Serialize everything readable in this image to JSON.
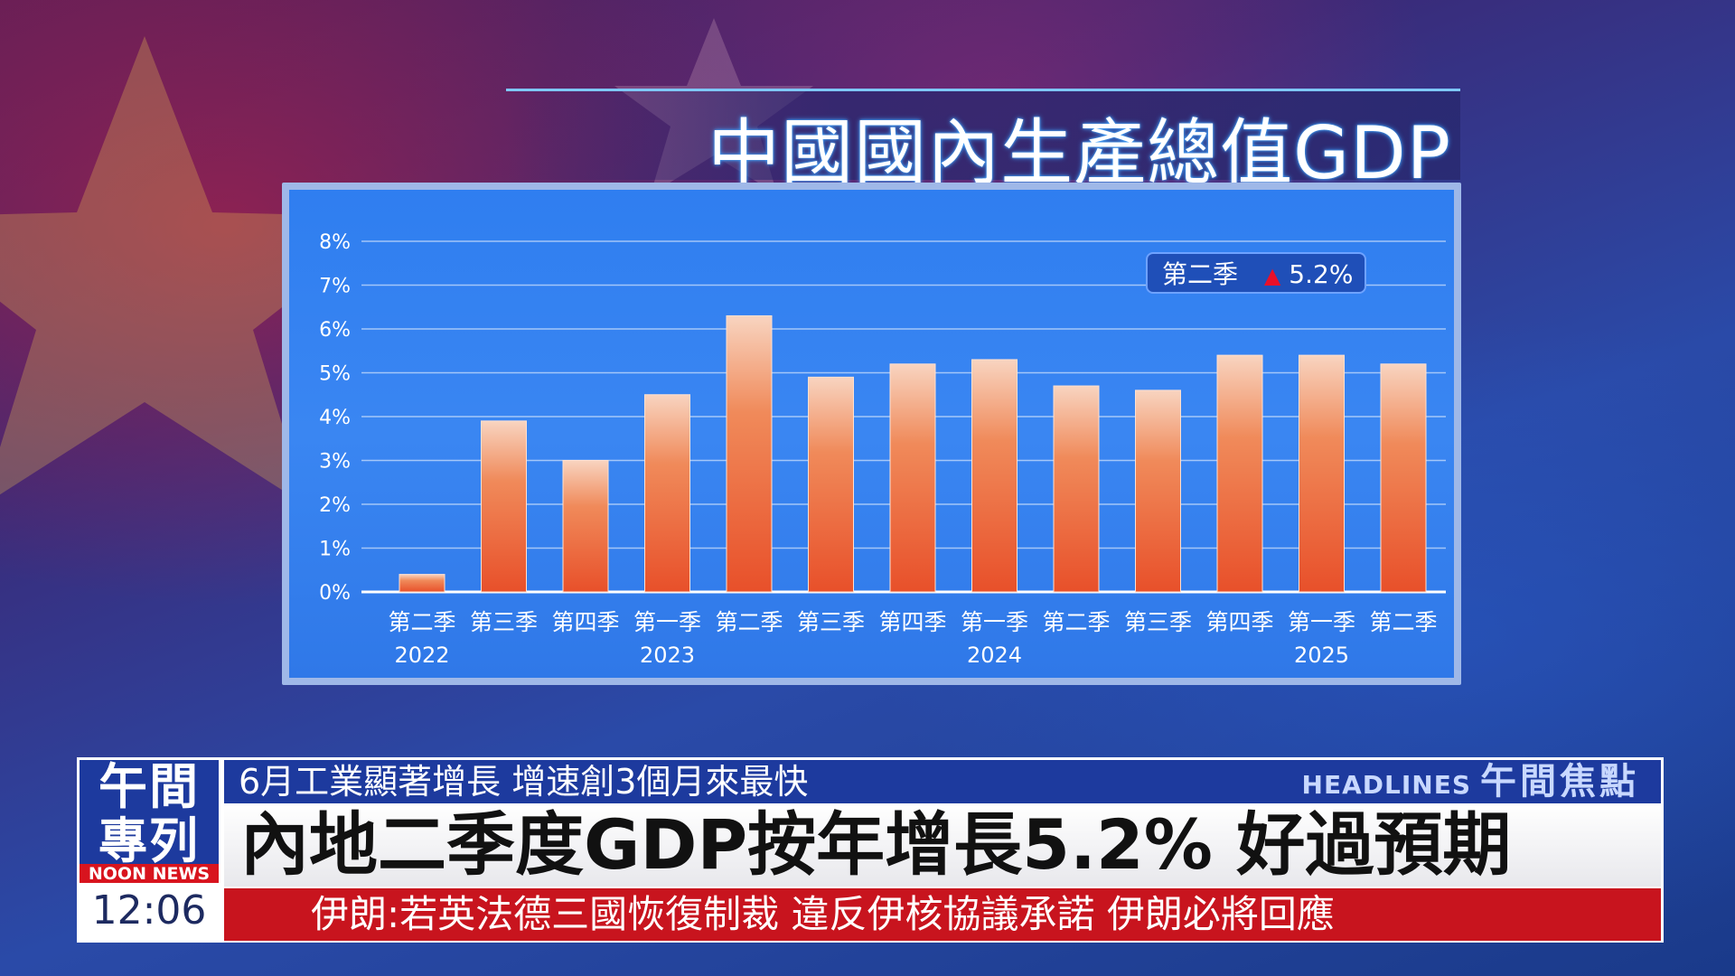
{
  "title": "中國國內生產總值GDP",
  "ticker": {
    "logo_line1": "午間",
    "logo_line2": "專列",
    "logo_en": "NOON NEWS",
    "time": "12:06",
    "sub_headline": "6月工業顯著增長 增速創3個月來最快",
    "headlines_en": "HEADLINES",
    "headlines_cn": "午間焦點",
    "main_headline": "內地二季度GDP按年增長5.2% 好過預期",
    "red_headline": "伊朗:若英法德三國恢復制裁 違反伊核協議承諾 伊朗必將回應"
  },
  "legend": {
    "label": "第二季",
    "marker": "▲",
    "value": "5.2%"
  },
  "colors": {
    "bar_top": "#f8d0b8",
    "bar_bottom": "#e8582a",
    "panel": "#3a86f2",
    "logo_blue": "#1d3a9e",
    "ticker_red": "#c8141e",
    "up_marker": "#e8102a"
  },
  "chart_data": {
    "type": "bar",
    "title": "中國國內生產總值GDP",
    "categories": [
      "第二季",
      "第三季",
      "第四季",
      "第一季",
      "第二季",
      "第三季",
      "第四季",
      "第一季",
      "第二季",
      "第三季",
      "第四季",
      "第一季",
      "第二季"
    ],
    "years": [
      {
        "label": "2022",
        "index": 0
      },
      {
        "label": "2023",
        "index": 3
      },
      {
        "label": "2024",
        "index": 7
      },
      {
        "label": "2025",
        "index": 11
      }
    ],
    "values": [
      0.4,
      3.9,
      3.0,
      4.5,
      6.3,
      4.9,
      5.2,
      5.3,
      4.7,
      4.6,
      5.4,
      5.4,
      5.2
    ],
    "yticks": [
      "0%",
      "1%",
      "2%",
      "3%",
      "4%",
      "5%",
      "6%",
      "7%",
      "8%"
    ],
    "ylim": [
      0,
      8
    ],
    "grid": true,
    "legend_position": "top-right",
    "xlabel": "",
    "ylabel": ""
  }
}
